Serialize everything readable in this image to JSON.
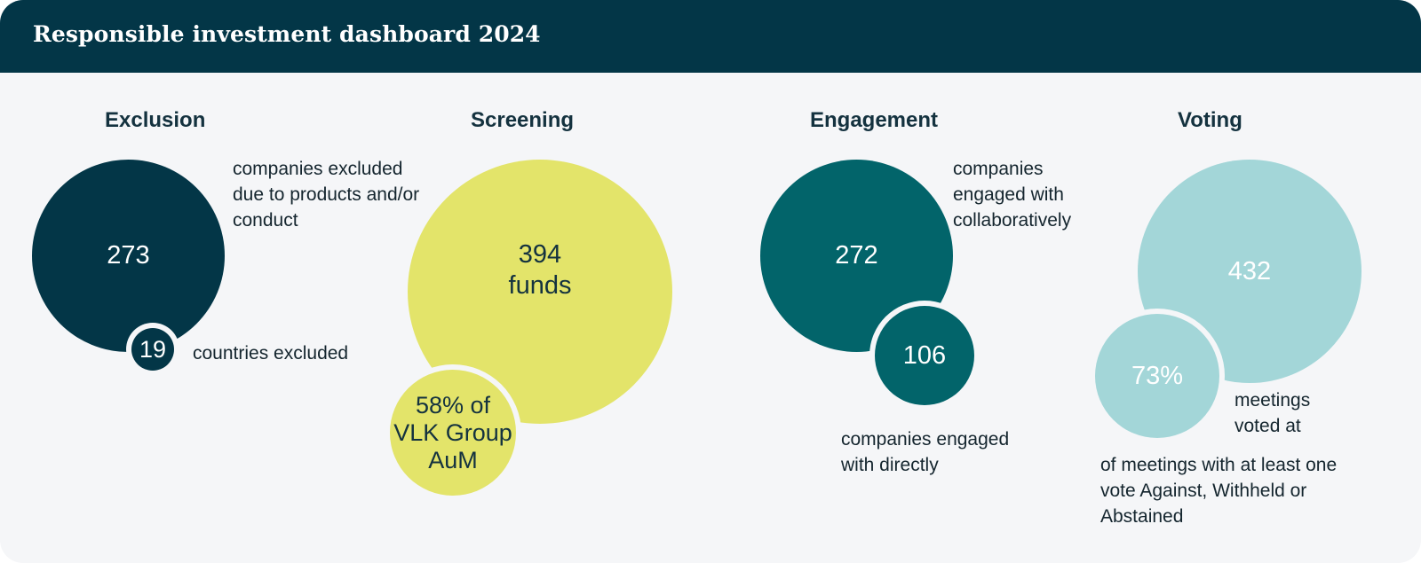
{
  "title": "Responsible investment dashboard 2024",
  "colors": {
    "header_bg": "#033647",
    "panel_bg": "#f5f6f8",
    "exclusion": "#033647",
    "screening": "#e3e46a",
    "engagement": "#02646a",
    "voting": "#a3d6d8"
  },
  "sections": {
    "exclusion": {
      "title": "Exclusion",
      "main_value": "273",
      "main_label": "companies excluded due to products and/or conduct",
      "sub_value": "19",
      "sub_label": "countries excluded"
    },
    "screening": {
      "title": "Screening",
      "main_value": "394",
      "main_unit": "funds",
      "sub_value": "58% of VLK Group AuM"
    },
    "engagement": {
      "title": "Engagement",
      "main_value": "272",
      "main_label": "companies engaged with collaboratively",
      "sub_value": "106",
      "sub_label": "companies engaged with directly"
    },
    "voting": {
      "title": "Voting",
      "main_value": "432",
      "main_label": "meetings voted at",
      "sub_value": "73%",
      "sub_label": "of meetings with at least one vote Against, Withheld or Abstained"
    }
  }
}
